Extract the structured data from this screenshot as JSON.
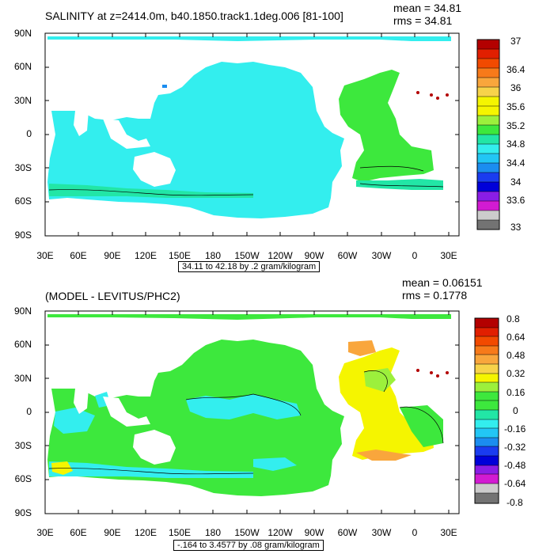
{
  "panel1": {
    "title": "SALINITY at z=2414.0m, b40.1850.track1.1deg.006 [81-100]",
    "mean_label": "mean = 34.81",
    "rms_label": "rms = 34.81",
    "range_label": "34.11 to 42.18 by .2 gram/kilogram",
    "colorbar_labels": [
      "37",
      "36.4",
      "36",
      "35.6",
      "35.2",
      "34.8",
      "34.4",
      "34",
      "33.6",
      "33"
    ]
  },
  "panel2": {
    "title": "(MODEL - LEVITUS/PHC2)",
    "mean_label": "mean = 0.06151",
    "rms_label": "rms = 0.1778",
    "range_label": "-.164 to 3.4577 by .08 gram/kilogram",
    "colorbar_labels": [
      "0.8",
      "0.64",
      "0.48",
      "0.32",
      "0.16",
      "0",
      "-0.16",
      "-0.32",
      "-0.48",
      "-0.64",
      "-0.8"
    ]
  },
  "lat_labels": [
    "90N",
    "60N",
    "30N",
    "0",
    "30S",
    "60S",
    "90S"
  ],
  "lon_labels": [
    "30E",
    "60E",
    "90E",
    "120E",
    "150E",
    "180",
    "150W",
    "120W",
    "90W",
    "60W",
    "30W",
    "0",
    "30E"
  ],
  "colors": {
    "land": "#ffffff",
    "cyan": "#33eeee",
    "green": "#3de83d",
    "yellow": "#f5f500",
    "lightgreen": "#9cf03c",
    "orange": "#f5b060",
    "darkred": "#b30000",
    "colorbar1": [
      "#b30000",
      "#e11f00",
      "#f24a00",
      "#f77a1a",
      "#f9a63c",
      "#f7d34a",
      "#f5f500",
      "#9cf03c",
      "#3de83d",
      "#22e6a6",
      "#33eeee",
      "#22c6f5",
      "#1b8df0",
      "#1a3cf0",
      "#0000d9",
      "#8a1de6",
      "#d21bd2",
      "#cccccc",
      "#737373"
    ],
    "colorbar2": [
      "#b30000",
      "#e11f00",
      "#f24a00",
      "#f77a1a",
      "#f9a63c",
      "#f7d34a",
      "#f5f500",
      "#9cf03c",
      "#3de83d",
      "#22e6a6",
      "#33eeee",
      "#22c6f5",
      "#1b8df0",
      "#1a3cf0",
      "#0000d9",
      "#8a1de6",
      "#d21bd2",
      "#cccccc",
      "#737373"
    ]
  }
}
